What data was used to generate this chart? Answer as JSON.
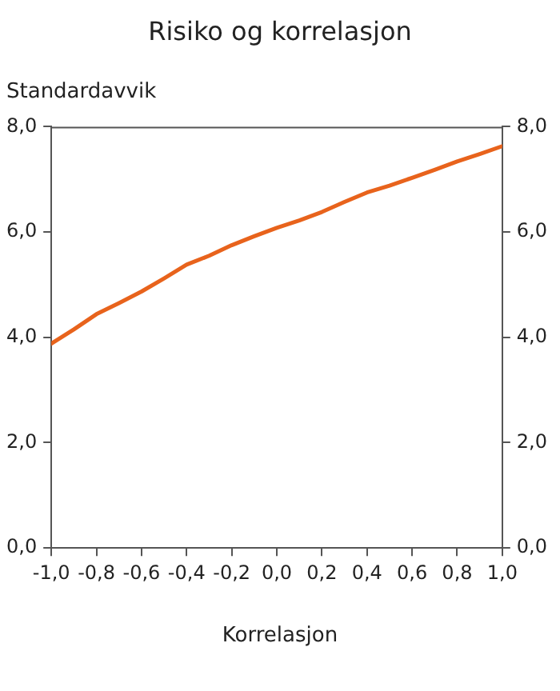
{
  "chart_data": {
    "type": "line",
    "title": "Risiko og korrelasjon",
    "ylabel": "Standardavvik",
    "xlabel": "Korrelasjon",
    "x": [
      -1,
      -0.9,
      -0.8,
      -0.7,
      -0.6,
      -0.5,
      -0.4,
      -0.3,
      -0.2,
      -0.1,
      0,
      0.1,
      0.2,
      0.3,
      0.4,
      0.5,
      0.6,
      0.7,
      0.8,
      0.9,
      1
    ],
    "series": [
      {
        "color": "#e8631c",
        "values": [
          3.88,
          4.15,
          4.44,
          4.65,
          4.87,
          5.12,
          5.38,
          5.55,
          5.75,
          5.92,
          6.08,
          6.22,
          6.38,
          6.57,
          6.75,
          6.88,
          7.03,
          7.18,
          7.34,
          7.48,
          7.63
        ]
      }
    ],
    "xlim": [
      -1,
      1
    ],
    "xticks": [
      {
        "value": -1,
        "label": "-1,0"
      },
      {
        "value": -0.8,
        "label": "-0,8"
      },
      {
        "value": -0.6,
        "label": "-0,6"
      },
      {
        "value": -0.4,
        "label": "-0,4"
      },
      {
        "value": -0.2,
        "label": "-0,2"
      },
      {
        "value": 0,
        "label": "0,0"
      },
      {
        "value": 0.2,
        "label": "0,2"
      },
      {
        "value": 0.4,
        "label": "0,4"
      },
      {
        "value": 0.6,
        "label": "0,6"
      },
      {
        "value": 0.8,
        "label": "0,8"
      },
      {
        "value": 1,
        "label": "1,0"
      }
    ],
    "ylim": [
      0,
      8
    ],
    "yticks": [
      {
        "value": 0,
        "label": "0,0"
      },
      {
        "value": 2,
        "label": "2,0"
      },
      {
        "value": 4,
        "label": "4,0"
      },
      {
        "value": 6,
        "label": "6,0"
      },
      {
        "value": 8,
        "label": "8,0"
      }
    ],
    "y2lim": [
      0,
      8
    ],
    "y2ticks": [
      {
        "value": 0,
        "label": "0,0"
      },
      {
        "value": 2,
        "label": "2,0"
      },
      {
        "value": 4,
        "label": "4,0"
      },
      {
        "value": 6,
        "label": "6,0"
      },
      {
        "value": 8,
        "label": "8,0"
      }
    ],
    "grid": false,
    "legend": false,
    "marker": "none",
    "line_style": "solid"
  }
}
